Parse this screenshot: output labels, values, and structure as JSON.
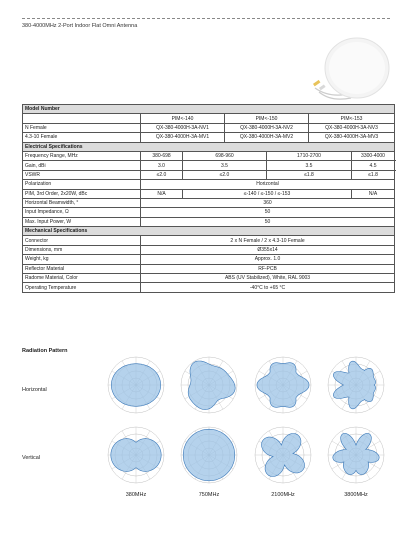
{
  "doc_title": "380-4000MHz 2-Port Indoor Flat Omni Antenna",
  "table": {
    "model_header": "Model Number",
    "col_heads": [
      "PIM<-140",
      "PIM<-150",
      "PIM<-153"
    ],
    "n_female": {
      "label": "N Female",
      "values": [
        "QX-380-4000H-3A-NV1",
        "QX-380-4000H-3A-NV2",
        "QX-380-4000H-3A-NV3"
      ]
    },
    "f4310": {
      "label": "4.3-10 Female",
      "values": [
        "QX-380-4000H-3A-MV1",
        "QX-380-4000H-3A-MV2",
        "QX-380-4000H-3A-MV3"
      ]
    },
    "elec_header": "Electrical Specifications",
    "freq": {
      "label": "Frequency Range, MHz",
      "values": [
        "380-698",
        "698-960",
        "1710-2700",
        "3300-4000"
      ]
    },
    "gain": {
      "label": "Gain, dBi",
      "values": [
        "3.0",
        "3.5",
        "3.5",
        "4.5"
      ]
    },
    "vswr": {
      "label": "VSWR",
      "values": [
        "≤2.0",
        "≤2.0",
        "≤1.8",
        "≤1.8"
      ]
    },
    "polar": {
      "label": "Polarization",
      "value": "Horizontal"
    },
    "pim": {
      "label": "PIM, 3rd Order, 2x20W, dBc",
      "values": [
        "N/A",
        "≤-140 / ≤-150 / ≤-153",
        "N/A"
      ]
    },
    "hbw": {
      "label": "Horizontal Beamwidth, °",
      "value": "360"
    },
    "imp": {
      "label": "Input Impedance, Ω",
      "value": "50"
    },
    "maxp": {
      "label": "Max. Input Power, W",
      "value": "50"
    },
    "mech_header": "Mechanical Specifications",
    "conn": {
      "label": "Connector",
      "value": "2 x N Female / 2 x 4.3-10 Female"
    },
    "dim": {
      "label": "Dimensions, mm",
      "value": "Ø355x14"
    },
    "weight": {
      "label": "Weight, kg",
      "value": "Approx. 1.0"
    },
    "refl": {
      "label": "Reflector Material",
      "value": "RF-PCB"
    },
    "radome": {
      "label": "Radome Material, Color",
      "value": "ABS (UV Stabilized), White, RAL 9003"
    },
    "optemp": {
      "label": "Operating Temperature",
      "value": "-40°C to +65 °C"
    }
  },
  "radiation": {
    "title": "Radiation Pattern",
    "rows": [
      "Horizontal",
      "Vertical"
    ],
    "freqs": [
      "380MHz",
      "750MHz",
      "2100MHz",
      "3800MHz"
    ]
  },
  "colors": {
    "pattern_fill": "#9cc3e6",
    "pattern_stroke": "#3a78b8",
    "grid": "#b0b0b0"
  }
}
